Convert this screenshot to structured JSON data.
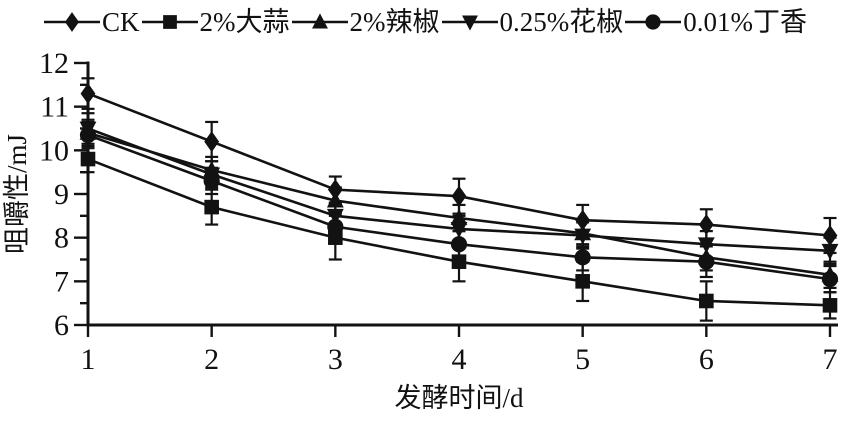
{
  "figure": {
    "background": "#ffffff",
    "ink": "#121212"
  },
  "chart_data": {
    "type": "line",
    "title": "",
    "xlabel": "发酵时间/d",
    "ylabel": "咀嚼性/mJ",
    "x": [
      1,
      2,
      3,
      4,
      5,
      6,
      7
    ],
    "x_ticks": [
      "1",
      "2",
      "3",
      "4",
      "5",
      "6",
      "7"
    ],
    "y_ticks": [
      "6",
      "7",
      "8",
      "9",
      "10",
      "11",
      "12"
    ],
    "xlim": [
      1,
      7
    ],
    "ylim": [
      6,
      12
    ],
    "y_minor_step": 0.5,
    "grid": false,
    "legend_position": "top",
    "error_bars": true,
    "series": [
      {
        "name": "CK",
        "marker": "diamond",
        "values": [
          11.3,
          10.2,
          9.1,
          8.95,
          8.4,
          8.3,
          8.05
        ],
        "errors": [
          0.35,
          0.45,
          0.3,
          0.4,
          0.35,
          0.35,
          0.4
        ]
      },
      {
        "name": "2%大蒜",
        "marker": "square",
        "values": [
          9.8,
          8.7,
          8.0,
          7.45,
          7.0,
          6.55,
          6.45
        ],
        "errors": [
          0.3,
          0.4,
          0.5,
          0.45,
          0.45,
          0.45,
          0.3
        ]
      },
      {
        "name": "2%辣椒",
        "marker": "triangle-up",
        "values": [
          10.4,
          9.55,
          8.85,
          8.45,
          8.1,
          7.55,
          7.15
        ],
        "errors": [
          0.3,
          0.3,
          0.3,
          0.3,
          0.3,
          0.3,
          0.3
        ]
      },
      {
        "name": "0.25%花椒",
        "marker": "triangle-down",
        "values": [
          10.5,
          9.45,
          8.5,
          8.2,
          8.05,
          7.85,
          7.7
        ],
        "errors": [
          0.35,
          0.3,
          0.3,
          0.3,
          0.3,
          0.3,
          0.3
        ]
      },
      {
        "name": "0.01%丁香",
        "marker": "circle",
        "values": [
          10.35,
          9.3,
          8.25,
          7.85,
          7.55,
          7.45,
          7.05
        ],
        "errors": [
          0.3,
          0.3,
          0.35,
          0.3,
          0.3,
          0.35,
          0.3
        ]
      }
    ]
  }
}
